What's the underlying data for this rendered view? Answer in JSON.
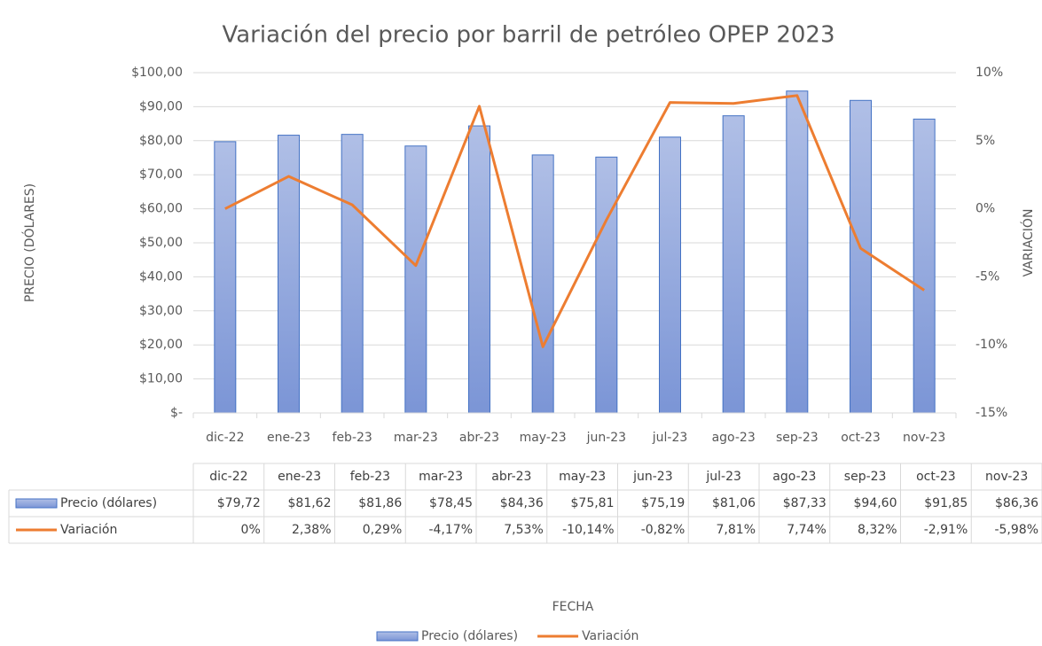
{
  "chart_data": {
    "type": "bar",
    "title": "Variación del precio por barril de petróleo OPEP 2023",
    "x_label": "FECHA",
    "y_label": "PRECIO (DÓLARES)",
    "y2_label": "VARIACIÓN",
    "categories": [
      "dic-22",
      "ene-23",
      "feb-23",
      "mar-23",
      "abr-23",
      "may-23",
      "jun-23",
      "jul-23",
      "ago-23",
      "sep-23",
      "oct-23",
      "nov-23"
    ],
    "series": [
      {
        "name": "Precio (dólares)",
        "type": "bar",
        "color": "#4472c4",
        "values": [
          79.72,
          81.62,
          81.86,
          78.45,
          84.36,
          75.81,
          75.19,
          81.06,
          87.33,
          94.6,
          91.85,
          86.36
        ],
        "value_labels": [
          "$79,72",
          "$81,62",
          "$81,86",
          "$78,45",
          "$84,36",
          "$75,81",
          "$75,19",
          "$81,06",
          "$87,33",
          "$94,60",
          "$91,85",
          "$86,36"
        ]
      },
      {
        "name": "Variación",
        "type": "line",
        "axis": "y2",
        "color": "#ed7d31",
        "values": [
          0,
          2.38,
          0.29,
          -4.17,
          7.53,
          -10.14,
          -0.82,
          7.81,
          7.74,
          8.32,
          -2.91,
          -5.98
        ],
        "value_labels": [
          "0%",
          "2,38%",
          "0,29%",
          "-4,17%",
          "7,53%",
          "-10,14%",
          "-0,82%",
          "7,81%",
          "7,74%",
          "8,32%",
          "-2,91%",
          "-5,98%"
        ]
      }
    ],
    "ylim": [
      0,
      100
    ],
    "yticks": [
      {
        "value": 0,
        "label": "$-"
      },
      {
        "value": 10,
        "label": "$10,00"
      },
      {
        "value": 20,
        "label": "$20,00"
      },
      {
        "value": 30,
        "label": "$30,00"
      },
      {
        "value": 40,
        "label": "$40,00"
      },
      {
        "value": 50,
        "label": "$50,00"
      },
      {
        "value": 60,
        "label": "$60,00"
      },
      {
        "value": 70,
        "label": "$70,00"
      },
      {
        "value": 80,
        "label": "$80,00"
      },
      {
        "value": 90,
        "label": "$90,00"
      },
      {
        "value": 100,
        "label": "$100,00"
      }
    ],
    "y2lim": [
      -15,
      10
    ],
    "y2ticks": [
      {
        "value": -15,
        "label": "-15%"
      },
      {
        "value": -10,
        "label": "-10%"
      },
      {
        "value": -5,
        "label": "-5%"
      },
      {
        "value": 0,
        "label": "0%"
      },
      {
        "value": 5,
        "label": "5%"
      },
      {
        "value": 10,
        "label": "10%"
      }
    ],
    "grid": true,
    "legend": "bottom"
  }
}
